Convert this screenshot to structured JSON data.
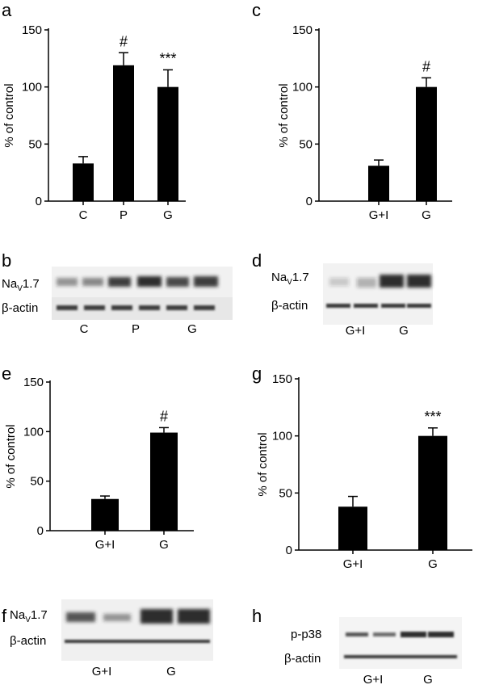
{
  "panels": {
    "a": {
      "label": "a"
    },
    "b": {
      "label": "b",
      "rows": [
        "Na",
        "V",
        "1.7",
        "β-actin"
      ],
      "lanes": [
        "C",
        "P",
        "G"
      ]
    },
    "c": {
      "label": "c"
    },
    "d": {
      "label": "d",
      "rows": [
        "Na",
        "V",
        "1.7",
        "β-actin"
      ],
      "lanes": [
        "G+I",
        "G"
      ]
    },
    "e": {
      "label": "e"
    },
    "f": {
      "label": "f",
      "rows": [
        "Na",
        "V",
        "1.7",
        "β-actin"
      ],
      "lanes": [
        "G+I",
        "G"
      ]
    },
    "g": {
      "label": "g"
    },
    "h": {
      "label": "h",
      "rows": [
        "p-p38",
        "β-actin"
      ],
      "lanes": [
        "G+I",
        "G"
      ]
    }
  },
  "chart_data": [
    {
      "panel": "a",
      "type": "bar",
      "categories": [
        "C",
        "P",
        "G"
      ],
      "values": [
        33,
        119,
        100
      ],
      "errors": [
        6,
        11,
        15
      ],
      "annotations": [
        "",
        "#",
        "***"
      ],
      "ylabel": "% of control",
      "ylim": [
        0,
        150
      ],
      "yticks": [
        "0",
        "50",
        "100",
        "150"
      ],
      "color": "#000000"
    },
    {
      "panel": "c",
      "type": "bar",
      "categories": [
        "G+I",
        "G"
      ],
      "values": [
        31,
        100
      ],
      "errors": [
        5,
        8
      ],
      "annotations": [
        "",
        "#"
      ],
      "ylabel": "% of control",
      "ylim": [
        0,
        150
      ],
      "yticks": [
        "0",
        "50",
        "100",
        "150"
      ],
      "color": "#000000"
    },
    {
      "panel": "e",
      "type": "bar",
      "categories": [
        "G+I",
        "G"
      ],
      "values": [
        32,
        99
      ],
      "errors": [
        3,
        5
      ],
      "annotations": [
        "",
        "#"
      ],
      "ylabel": "% of control",
      "ylim": [
        0,
        150
      ],
      "yticks": [
        "0",
        "50",
        "100",
        "150"
      ],
      "color": "#000000"
    },
    {
      "panel": "g",
      "type": "bar",
      "categories": [
        "G+I",
        "G"
      ],
      "values": [
        38,
        100
      ],
      "errors": [
        9,
        7
      ],
      "annotations": [
        "",
        "***"
      ],
      "ylabel": "% of control",
      "ylim": [
        0,
        150
      ],
      "yticks": [
        "0",
        "50",
        "100",
        "150"
      ],
      "color": "#000000"
    }
  ]
}
